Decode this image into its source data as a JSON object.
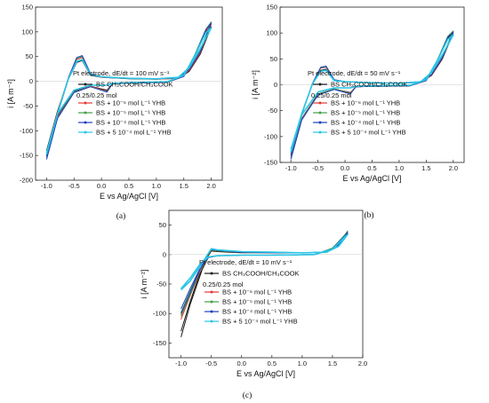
{
  "chart_data": [
    {
      "type": "line",
      "caption": "(a)",
      "xlabel": "E vs Ag/AgCl [V]",
      "ylabel": "i [A m⁻²]",
      "xlim": [
        -1.2,
        2.2
      ],
      "ylim": [
        -200,
        150
      ],
      "xticks": [
        "-1.0",
        "-0.5",
        "0.0",
        "0.5",
        "1.0",
        "1.5",
        "2.0"
      ],
      "xtick_values": [
        -1.0,
        -0.5,
        0.0,
        0.5,
        1.0,
        1.5,
        2.0
      ],
      "yticks": [
        "-200",
        "-150",
        "-100",
        "-50",
        "0",
        "50",
        "100",
        "150"
      ],
      "ytick_values": [
        -200,
        -150,
        -100,
        -50,
        0,
        50,
        100,
        150
      ],
      "legend_title": "Pt electrode, dE/dt = 100 mV s⁻¹",
      "legend_note": "0.25/0.25 mol",
      "legend_placement": "center-right",
      "series": [
        {
          "name": "BS CH₃COOH/CH₃COOK",
          "color": "#1a1a1a",
          "x": [
            -1.0,
            -0.8,
            -0.6,
            -0.45,
            -0.35,
            -0.2,
            0.0,
            0.5,
            1.0,
            1.4,
            1.6,
            1.8,
            2.0,
            1.9,
            1.7,
            1.5,
            1.2,
            0.5,
            0.2,
            0.1,
            -0.2,
            -0.5,
            -0.8,
            -1.0
          ],
          "y": [
            -140,
            -60,
            5,
            38,
            42,
            12,
            8,
            5,
            4,
            6,
            20,
            55,
            110,
            100,
            50,
            10,
            -2,
            -4,
            -5,
            -18,
            -10,
            -20,
            -70,
            -150
          ]
        },
        {
          "name": "BS + 10⁻⁶ mol L⁻¹ YHB",
          "color": "#e53935",
          "x": [
            -1.0,
            -0.8,
            -0.6,
            -0.45,
            -0.35,
            -0.2,
            0.0,
            0.5,
            1.0,
            1.4,
            1.6,
            1.8,
            2.0,
            1.9,
            1.7,
            1.5,
            1.2,
            0.5,
            0.2,
            0.1,
            -0.2,
            -0.5,
            -0.8,
            -1.0
          ],
          "y": [
            -145,
            -62,
            8,
            44,
            48,
            14,
            8,
            6,
            4,
            6,
            22,
            58,
            115,
            102,
            52,
            10,
            -2,
            -4,
            -5,
            -20,
            -10,
            -22,
            -72,
            -152
          ]
        },
        {
          "name": "BS + 10⁻⁵ mol L⁻¹ YHB",
          "color": "#43a047",
          "x": [
            -1.0,
            -0.8,
            -0.6,
            -0.45,
            -0.35,
            -0.2,
            0.0,
            0.5,
            1.0,
            1.4,
            1.6,
            1.8,
            2.0,
            1.9,
            1.7,
            1.5,
            1.2,
            0.5,
            0.2,
            0.1,
            -0.2,
            -0.5,
            -0.8,
            -1.0
          ],
          "y": [
            -150,
            -64,
            8,
            46,
            50,
            15,
            9,
            6,
            5,
            7,
            24,
            62,
            120,
            105,
            54,
            11,
            -2,
            -4,
            -5,
            -21,
            -11,
            -22,
            -74,
            -155
          ]
        },
        {
          "name": "BS + 10⁻⁴ mol L⁻¹ YHB",
          "color": "#1e3fbf",
          "x": [
            -1.0,
            -0.8,
            -0.6,
            -0.45,
            -0.35,
            -0.2,
            0.0,
            0.5,
            1.0,
            1.4,
            1.6,
            1.8,
            2.0,
            1.9,
            1.7,
            1.5,
            1.2,
            0.5,
            0.2,
            0.1,
            -0.2,
            -0.5,
            -0.8,
            -1.0
          ],
          "y": [
            -152,
            -66,
            8,
            48,
            52,
            16,
            9,
            6,
            5,
            7,
            24,
            60,
            118,
            104,
            52,
            10,
            -2,
            -4,
            -5,
            -22,
            -11,
            -23,
            -75,
            -158
          ]
        },
        {
          "name": "BS + 5 10⁻⁴ mol L⁻¹ YHB",
          "color": "#29c5e6",
          "x": [
            -1.0,
            -0.8,
            -0.6,
            -0.45,
            -0.35,
            -0.2,
            0.0,
            0.5,
            1.0,
            1.4,
            1.6,
            1.8,
            2.0,
            1.9,
            1.7,
            1.5,
            1.2,
            0.5,
            0.2,
            0.1,
            -0.2,
            -0.5,
            -0.8,
            -1.0
          ],
          "y": [
            -148,
            -66,
            6,
            40,
            44,
            14,
            9,
            6,
            5,
            8,
            28,
            66,
            108,
            98,
            52,
            12,
            -1,
            -3,
            -4,
            -8,
            -8,
            -18,
            -66,
            -145
          ]
        }
      ]
    },
    {
      "type": "line",
      "caption": "(b)",
      "xlabel": "E vs Ag/AgCl [V]",
      "ylabel": "i [A m⁻²]",
      "xlim": [
        -1.2,
        2.2
      ],
      "ylim": [
        -150,
        150
      ],
      "xticks": [
        "-1.0",
        "-0.5",
        "0.0",
        "0.5",
        "1.0",
        "1.5",
        "2.0"
      ],
      "xtick_values": [
        -1.0,
        -0.5,
        0.0,
        0.5,
        1.0,
        1.5,
        2.0
      ],
      "yticks": [
        "-150",
        "-100",
        "-50",
        "0",
        "50",
        "100",
        "150"
      ],
      "ytick_values": [
        -150,
        -100,
        -50,
        0,
        50,
        100,
        150
      ],
      "legend_title": "Pt electrode, dE/dt = 50 mV s⁻¹",
      "legend_note": "0.25/0.25 mol",
      "legend_placement": "center-right",
      "series": [
        {
          "name": "BS CH₃COOH/CH₃COOK",
          "color": "#1a1a1a",
          "x": [
            -1.0,
            -0.8,
            -0.6,
            -0.45,
            -0.35,
            -0.2,
            0.0,
            0.5,
            1.0,
            1.4,
            1.6,
            1.8,
            2.0,
            1.9,
            1.7,
            1.5,
            1.2,
            0.5,
            0.2,
            0.1,
            -0.2,
            -0.5,
            -0.8,
            -1.0
          ],
          "y": [
            -130,
            -55,
            2,
            28,
            30,
            8,
            6,
            4,
            3,
            5,
            18,
            50,
            100,
            90,
            45,
            8,
            -2,
            -3,
            -4,
            -15,
            -8,
            -18,
            -65,
            -138
          ]
        },
        {
          "name": "BS + 10⁻⁶ mol L⁻¹ YHB",
          "color": "#e53935",
          "x": [
            -1.0,
            -0.8,
            -0.6,
            -0.45,
            -0.35,
            -0.2,
            0.0,
            0.5,
            1.0,
            1.4,
            1.6,
            1.8,
            2.0,
            1.9,
            1.7,
            1.5,
            1.2,
            0.5,
            0.2,
            0.1,
            -0.2,
            -0.5,
            -0.8,
            -1.0
          ],
          "y": [
            -132,
            -56,
            3,
            32,
            34,
            9,
            6,
            4,
            3,
            5,
            19,
            52,
            102,
            92,
            46,
            8,
            -2,
            -3,
            -4,
            -16,
            -8,
            -19,
            -66,
            -140
          ]
        },
        {
          "name": "BS + 10⁻⁵ mol L⁻¹ YHB",
          "color": "#43a047",
          "x": [
            -1.0,
            -0.8,
            -0.6,
            -0.45,
            -0.35,
            -0.2,
            0.0,
            0.5,
            1.0,
            1.4,
            1.6,
            1.8,
            2.0,
            1.9,
            1.7,
            1.5,
            1.2,
            0.5,
            0.2,
            0.1,
            -0.2,
            -0.5,
            -0.8,
            -1.0
          ],
          "y": [
            -134,
            -57,
            3,
            33,
            35,
            9,
            6,
            4,
            3,
            5,
            20,
            54,
            104,
            94,
            47,
            8,
            -2,
            -3,
            -4,
            -17,
            -8,
            -19,
            -67,
            -142
          ]
        },
        {
          "name": "BS + 10⁻⁴ mol L⁻¹ YHB",
          "color": "#1e3fbf",
          "x": [
            -1.0,
            -0.8,
            -0.6,
            -0.45,
            -0.35,
            -0.2,
            0.0,
            0.5,
            1.0,
            1.4,
            1.6,
            1.8,
            2.0,
            1.9,
            1.7,
            1.5,
            1.2,
            0.5,
            0.2,
            0.1,
            -0.2,
            -0.5,
            -0.8,
            -1.0
          ],
          "y": [
            -136,
            -58,
            3,
            34,
            36,
            10,
            6,
            4,
            3,
            5,
            20,
            53,
            102,
            92,
            46,
            8,
            -2,
            -3,
            -4,
            -18,
            -9,
            -20,
            -68,
            -144
          ]
        },
        {
          "name": "BS + 5 10⁻⁴ mol L⁻¹ YHB",
          "color": "#29c5e6",
          "x": [
            -1.0,
            -0.8,
            -0.6,
            -0.45,
            -0.35,
            -0.2,
            0.0,
            0.5,
            1.0,
            1.4,
            1.6,
            1.8,
            2.0,
            1.9,
            1.7,
            1.5,
            1.2,
            0.5,
            0.2,
            0.1,
            -0.2,
            -0.5,
            -0.8,
            -1.0
          ],
          "y": [
            -125,
            -56,
            2,
            26,
            28,
            8,
            6,
            4,
            3,
            6,
            24,
            58,
            96,
            88,
            46,
            10,
            -1,
            -2,
            -3,
            -6,
            -6,
            -14,
            -58,
            -130
          ]
        }
      ]
    },
    {
      "type": "line",
      "caption": "(c)",
      "xlabel": "E vs Ag/AgCl [V]",
      "ylabel": "i [A m⁻²]",
      "xlim": [
        -1.2,
        2.0
      ],
      "ylim": [
        -175,
        75
      ],
      "xticks": [
        "-1.0",
        "-0.5",
        "0.0",
        "0.5",
        "1.0",
        "1.5",
        "2.0"
      ],
      "xtick_values": [
        -1.0,
        -0.5,
        0.0,
        0.5,
        1.0,
        1.5,
        2.0
      ],
      "yticks": [
        "-150",
        "-100",
        "-50",
        "0",
        "50"
      ],
      "ytick_values": [
        -150,
        -100,
        -50,
        0,
        50
      ],
      "legend_title": "Pt electrode, dE/dt = 10 mV s⁻¹",
      "legend_note": "0.25/0.25 mol",
      "legend_placement": "center-right",
      "series": [
        {
          "name": "BS CH₃COOH/CH₃COOK",
          "color": "#1a1a1a",
          "x": [
            -1.0,
            -0.85,
            -0.7,
            -0.6,
            -0.5,
            -0.4,
            0.0,
            0.5,
            1.0,
            1.4,
            1.6,
            1.75,
            1.7,
            1.5,
            1.2,
            0.5,
            0.0,
            -0.4,
            -0.55,
            -0.7,
            -0.85,
            -1.0
          ],
          "y": [
            -140,
            -85,
            -40,
            -10,
            6,
            5,
            3,
            3,
            3,
            4,
            15,
            36,
            30,
            10,
            0,
            -1,
            -1,
            -2,
            -5,
            -35,
            -80,
            -130
          ]
        },
        {
          "name": "BS + 10⁻⁶ mol L⁻¹ YHB",
          "color": "#e53935",
          "x": [
            -1.0,
            -0.85,
            -0.7,
            -0.6,
            -0.5,
            -0.4,
            0.0,
            0.5,
            1.0,
            1.4,
            1.6,
            1.75,
            1.7,
            1.5,
            1.2,
            0.5,
            0.0,
            -0.4,
            -0.55,
            -0.7,
            -0.85,
            -1.0
          ],
          "y": [
            -110,
            -70,
            -32,
            -8,
            8,
            6,
            4,
            3,
            3,
            4,
            16,
            38,
            32,
            10,
            0,
            -1,
            -1,
            -2,
            -5,
            -30,
            -66,
            -102
          ]
        },
        {
          "name": "BS + 10⁻⁵ mol L⁻¹ YHB",
          "color": "#43a047",
          "x": [
            -1.0,
            -0.85,
            -0.7,
            -0.6,
            -0.5,
            -0.4,
            0.0,
            0.5,
            1.0,
            1.4,
            1.6,
            1.75,
            1.7,
            1.5,
            1.2,
            0.5,
            0.0,
            -0.4,
            -0.55,
            -0.7,
            -0.85,
            -1.0
          ],
          "y": [
            -105,
            -68,
            -30,
            -8,
            8,
            6,
            4,
            3,
            3,
            4,
            17,
            40,
            33,
            11,
            0,
            -1,
            -1,
            -2,
            -5,
            -28,
            -62,
            -98
          ]
        },
        {
          "name": "BS + 10⁻⁴ mol L⁻¹ YHB",
          "color": "#1e3fbf",
          "x": [
            -1.0,
            -0.85,
            -0.7,
            -0.6,
            -0.5,
            -0.4,
            0.0,
            0.5,
            1.0,
            1.4,
            1.6,
            1.75,
            1.7,
            1.5,
            1.2,
            0.5,
            0.0,
            -0.4,
            -0.55,
            -0.7,
            -0.85,
            -1.0
          ],
          "y": [
            -100,
            -65,
            -28,
            -7,
            9,
            7,
            4,
            3,
            3,
            4,
            16,
            38,
            32,
            10,
            0,
            -1,
            -1,
            -2,
            -5,
            -26,
            -58,
            -92
          ]
        },
        {
          "name": "BS + 5 10⁻⁴ mol L⁻¹ YHB",
          "color": "#29c5e6",
          "x": [
            -1.0,
            -0.85,
            -0.7,
            -0.6,
            -0.5,
            -0.4,
            0.0,
            0.5,
            1.0,
            1.4,
            1.6,
            1.75,
            1.7,
            1.5,
            1.2,
            0.5,
            0.0,
            -0.4,
            -0.55,
            -0.7,
            -0.85,
            -1.0
          ],
          "y": [
            -60,
            -45,
            -22,
            -6,
            10,
            8,
            5,
            4,
            3,
            4,
            14,
            34,
            30,
            9,
            0,
            -1,
            -1,
            -2,
            -4,
            -18,
            -40,
            -58
          ]
        }
      ]
    }
  ]
}
